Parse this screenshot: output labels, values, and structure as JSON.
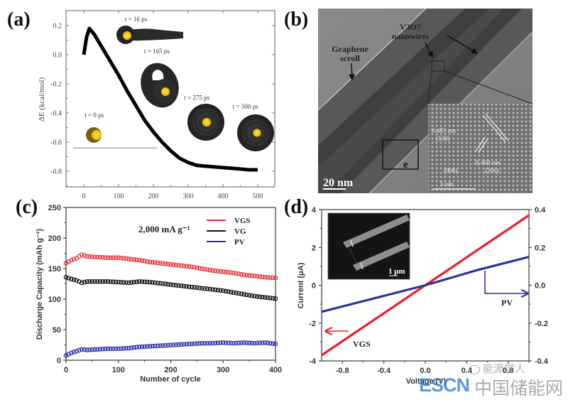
{
  "panels": {
    "a": "(a)",
    "b": "(b)",
    "c": "(c)",
    "d": "(d)"
  },
  "chart_data": [
    {
      "id": "a",
      "type": "line",
      "title": "",
      "xlabel": "",
      "ylabel": "ΔE (kcal/mol)",
      "xlim": [
        -30,
        555
      ],
      "ylim": [
        -0.9,
        0.3
      ],
      "xticks": [
        0,
        100,
        200,
        300,
        400,
        500
      ],
      "xtick_labels": [
        "0",
        "100",
        "200",
        "300",
        "400",
        "500"
      ],
      "yticks": [
        0.2,
        0.0,
        -0.2,
        -0.4,
        -0.6,
        -0.8
      ],
      "ytick_labels": [
        "0.2",
        "0.0",
        "-0.2",
        "-0.4",
        "-0.6",
        "-0.8"
      ],
      "grid": false,
      "series": [
        {
          "name": "ΔE",
          "color": "#000000",
          "x": [
            0,
            8,
            16,
            30,
            50,
            75,
            100,
            125,
            150,
            175,
            200,
            225,
            250,
            275,
            300,
            325,
            350,
            375,
            400,
            425,
            450,
            475,
            500
          ],
          "y": [
            0.0,
            0.12,
            0.18,
            0.14,
            0.06,
            -0.04,
            -0.14,
            -0.25,
            -0.35,
            -0.45,
            -0.53,
            -0.6,
            -0.66,
            -0.71,
            -0.74,
            -0.76,
            -0.765,
            -0.77,
            -0.775,
            -0.78,
            -0.785,
            -0.79,
            -0.79
          ]
        }
      ],
      "reference_line": {
        "y": -0.64,
        "x": [
          -30,
          210
        ]
      },
      "annotations": [
        {
          "text": "t = 0 ps",
          "x": 30,
          "y": -0.43
        },
        {
          "text": "t = 16 ps",
          "x": 150,
          "y": 0.23
        },
        {
          "text": "t = 165 ps",
          "x": 210,
          "y": 0.01
        },
        {
          "text": "t = 275 ps",
          "x": 325,
          "y": -0.31
        },
        {
          "text": "t = 500 ps",
          "x": 465,
          "y": -0.37
        }
      ]
    },
    {
      "id": "b",
      "type": "image",
      "labels": {
        "graphene": [
          "Graphene",
          "scroll"
        ],
        "nanowires_formula": "V3O7",
        "nanowires": "nanowires",
        "scale_bar": "20 nm",
        "box_label": "e",
        "inset_d1": "0.483 nm",
        "inset_p1": "(130)",
        "inset_d2": "0.468 nm",
        "inset_p2": "(200)",
        "inset_p3": "(006)",
        "inset_scale": "5 nm"
      }
    },
    {
      "id": "c",
      "type": "scatter",
      "title": "",
      "xlabel": "Number of cycle",
      "ylabel": "Discharge Capacity  (mAh g⁻¹)",
      "xlim": [
        0,
        400
      ],
      "ylim": [
        0,
        250
      ],
      "xticks": [
        0,
        100,
        200,
        300,
        400
      ],
      "xtick_labels": [
        "0",
        "100",
        "200",
        "300",
        "400"
      ],
      "yticks": [
        0,
        50,
        100,
        150,
        200,
        250
      ],
      "ytick_labels": [
        "0",
        "50",
        "100",
        "150",
        "200",
        "250"
      ],
      "grid": false,
      "annotation": "2,000 mA g⁻¹",
      "legend_position": "top-right",
      "series": [
        {
          "name": "VGS",
          "color": "#e8303a",
          "x": [
            0,
            10,
            20,
            30,
            40,
            60,
            80,
            100,
            120,
            140,
            160,
            180,
            200,
            220,
            240,
            260,
            280,
            300,
            320,
            340,
            360,
            380,
            400
          ],
          "y": [
            160,
            165,
            168,
            174,
            171,
            170,
            169,
            169,
            167,
            165,
            162,
            160,
            158,
            156,
            154,
            151,
            148,
            146,
            144,
            141,
            139,
            137,
            136
          ]
        },
        {
          "name": "VG",
          "color": "#111111",
          "x": [
            0,
            10,
            20,
            30,
            40,
            60,
            80,
            100,
            120,
            140,
            160,
            180,
            200,
            220,
            240,
            260,
            280,
            300,
            320,
            340,
            360,
            380,
            400
          ],
          "y": [
            137,
            134,
            132,
            128,
            130,
            130,
            130,
            129,
            128,
            130,
            129,
            127,
            125,
            123,
            121,
            119,
            117,
            115,
            112,
            109,
            106,
            104,
            102
          ]
        },
        {
          "name": "PV",
          "color": "#2a2fa8",
          "x": [
            0,
            10,
            20,
            30,
            40,
            60,
            80,
            100,
            120,
            140,
            160,
            180,
            200,
            220,
            240,
            260,
            280,
            300,
            320,
            340,
            360,
            380,
            400
          ],
          "y": [
            9,
            13,
            16,
            19,
            18,
            19,
            20,
            20,
            21,
            23,
            24,
            25,
            26,
            27,
            28,
            29,
            29,
            30,
            29,
            30,
            29,
            30,
            28
          ]
        }
      ]
    },
    {
      "id": "d",
      "type": "line",
      "title": "",
      "xlabel": "Voltage (V)",
      "ylabel": "Current (μA)",
      "xlim": [
        -1.0,
        1.0
      ],
      "ylim": [
        -4,
        4
      ],
      "y2lim": [
        -0.4,
        0.4
      ],
      "xticks": [
        -0.8,
        -0.4,
        0.0,
        0.4,
        0.8
      ],
      "xtick_labels": [
        "-0.8",
        "-0.4",
        "0.0",
        "0.4",
        "0.8"
      ],
      "yticks": [
        4,
        2,
        0,
        -2,
        -4
      ],
      "ytick_labels": [
        "4",
        "2",
        "0",
        "-2",
        "-4"
      ],
      "y2ticks": [
        0.4,
        0.2,
        0.0,
        -0.2,
        -0.4
      ],
      "y2tick_labels": [
        "0.4",
        "0.2",
        "0.0",
        "-0.2",
        "-0.4"
      ],
      "grid": false,
      "series": [
        {
          "name": "VGS",
          "axis": "left",
          "color": "#e8202a",
          "x": [
            -1.0,
            1.0
          ],
          "y": [
            -3.7,
            3.7
          ]
        },
        {
          "name": "PV",
          "axis": "right",
          "color": "#2b3399",
          "x": [
            -1.0,
            -0.5,
            0.0,
            0.5,
            1.0
          ],
          "y": [
            -0.14,
            -0.07,
            0.0,
            0.08,
            0.15
          ]
        }
      ],
      "annotations": [
        {
          "text": "VGS",
          "axis_arrow": "left"
        },
        {
          "text": "PV",
          "axis_arrow": "right"
        }
      ],
      "inset_scale": "1 μm"
    }
  ],
  "watermark": {
    "wechat": "能源学人",
    "esc": "ESCN",
    "cn": "中国储能网"
  }
}
